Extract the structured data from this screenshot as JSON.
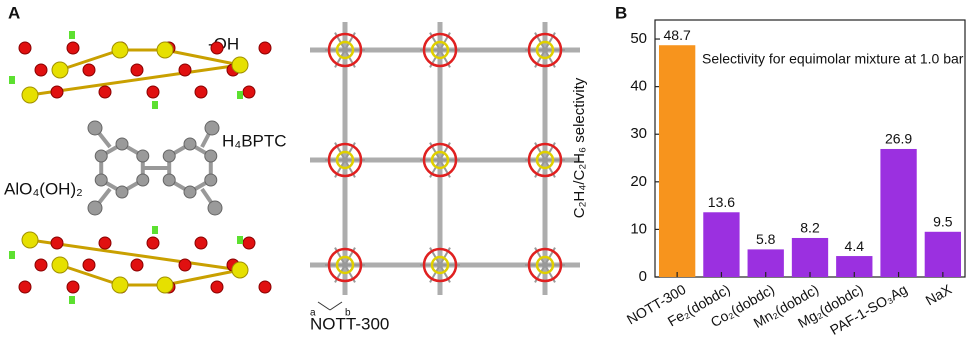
{
  "panel_a": {
    "label": "A",
    "oh_label": "-OH",
    "linker_label": "H₄BPTC",
    "node_label": "AlO₄(OH)₂",
    "framework_label": "NOTT-300",
    "axis_a": "a",
    "axis_b": "b"
  },
  "chart_data": {
    "type": "bar",
    "panel_label": "B",
    "ylabel": "C₂H₄/C₂H₆ selectivity",
    "annotation": "Selectivity for equimolar mixture at 1.0 bar",
    "categories": [
      "NOTT-300",
      "Fe₂(dobdc)",
      "Co₂(dobdc)",
      "Mn₂(dobdc)",
      "Mg₂(dobdc)",
      "PAF-1-SO₃Ag",
      "NaX"
    ],
    "values": [
      48.7,
      13.6,
      5.8,
      8.2,
      4.4,
      26.9,
      9.5
    ],
    "colors": [
      "#f7941d",
      "#9b30e0",
      "#9b30e0",
      "#9b30e0",
      "#9b30e0",
      "#9b30e0",
      "#9b30e0"
    ],
    "ylim": [
      0,
      54
    ],
    "yticks": [
      0,
      10,
      20,
      30,
      40,
      50
    ],
    "grid": false
  }
}
